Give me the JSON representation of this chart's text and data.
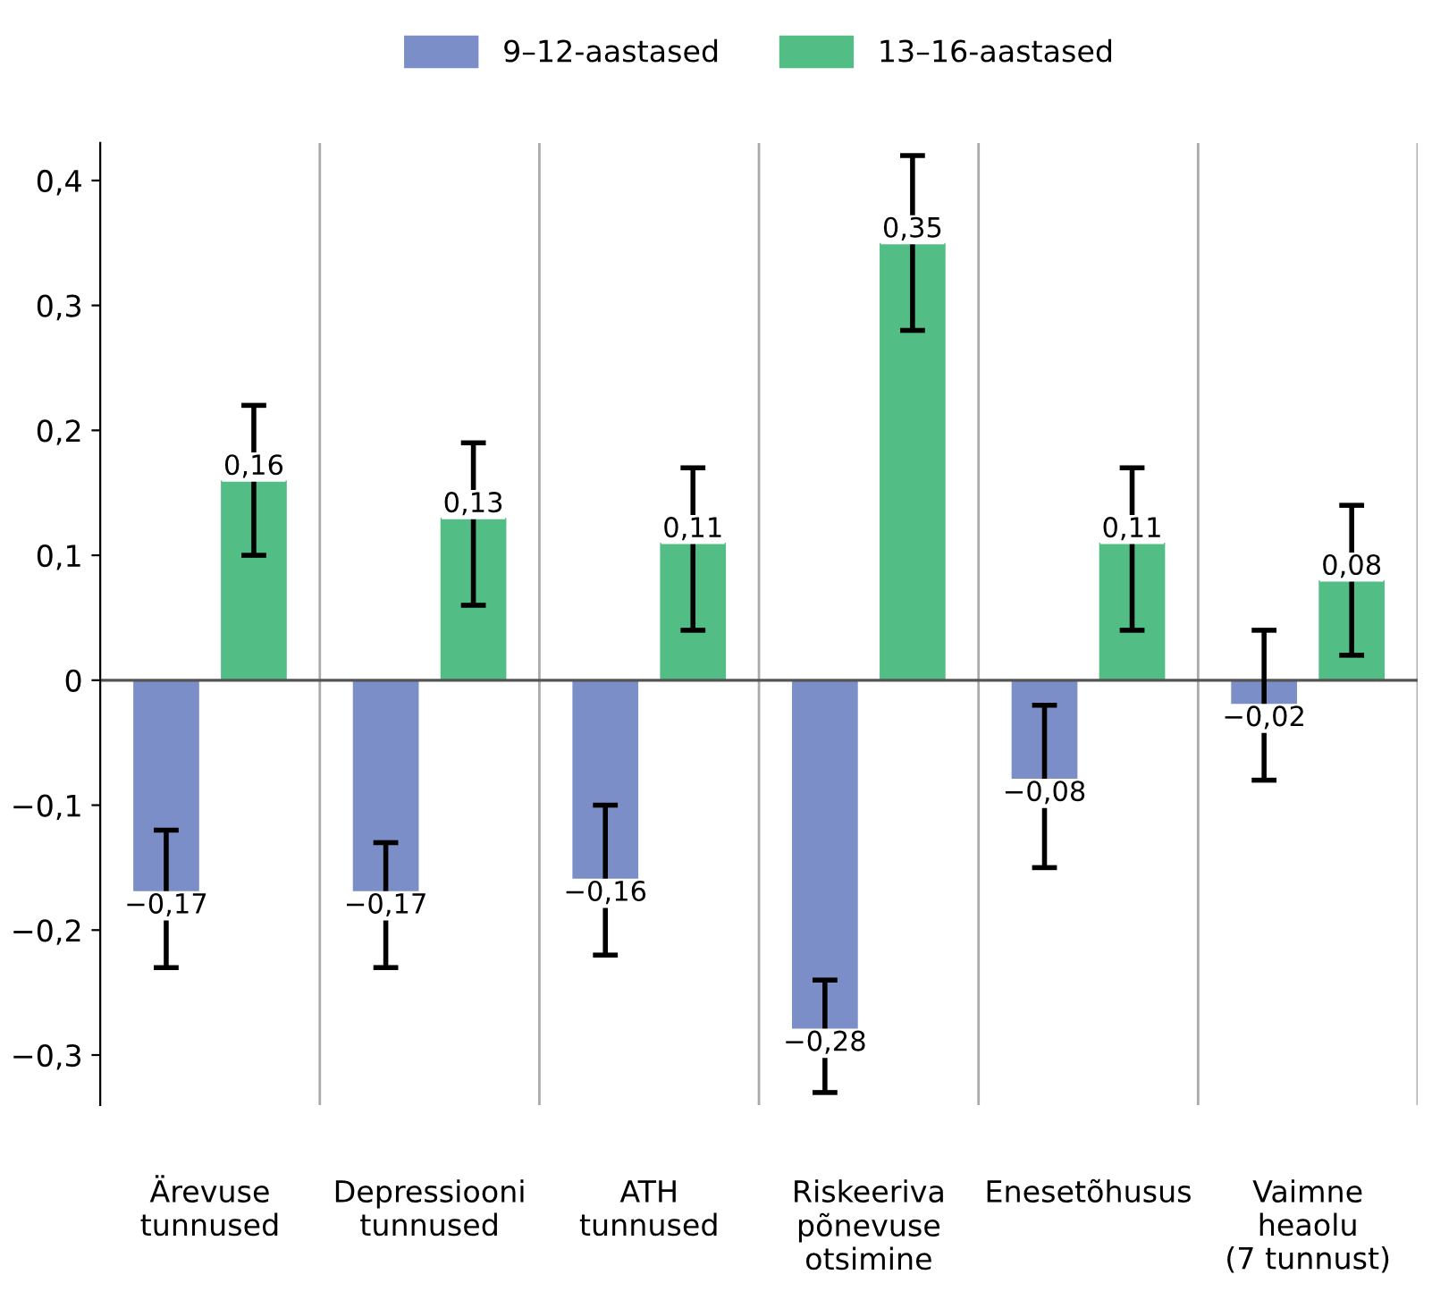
{
  "chart_data": {
    "type": "bar",
    "categories": [
      "Ärevuse\ntunnused",
      "Depressiooni\ntunnused",
      "ATH\ntunnused",
      "Riskeeriva\npõnevuse\notsimine",
      "Enesetõhusus",
      "Vaimne\nheaolu\n(7 tunnust)"
    ],
    "series": [
      {
        "name": "9–12-aastased",
        "color": "#7b8ec8",
        "values": [
          -0.17,
          -0.17,
          -0.16,
          -0.28,
          -0.08,
          -0.02
        ],
        "value_labels": [
          "−0,17",
          "−0,17",
          "−0,16",
          "−0,28",
          "−0,08",
          "−0,02"
        ],
        "errors": [
          [
            -0.23,
            -0.12
          ],
          [
            -0.23,
            -0.13
          ],
          [
            -0.22,
            -0.1
          ],
          [
            -0.33,
            -0.24
          ],
          [
            -0.15,
            -0.02
          ],
          [
            -0.08,
            0.04
          ]
        ]
      },
      {
        "name": "13–16-aastased",
        "color": "#52bd84",
        "values": [
          0.16,
          0.13,
          0.11,
          0.35,
          0.11,
          0.08
        ],
        "value_labels": [
          "0,16",
          "0,13",
          "0,11",
          "0,35",
          "0,11",
          "0,08"
        ],
        "errors": [
          [
            0.1,
            0.22
          ],
          [
            0.06,
            0.19
          ],
          [
            0.04,
            0.17
          ],
          [
            0.28,
            0.42
          ],
          [
            0.04,
            0.17
          ],
          [
            0.02,
            0.14
          ]
        ]
      }
    ],
    "ylim": [
      -0.34,
      0.43
    ],
    "yticks": [
      {
        "value": -0.3,
        "label": "−0,3"
      },
      {
        "value": -0.2,
        "label": "−0,2"
      },
      {
        "value": -0.1,
        "label": "−0,1"
      },
      0,
      {
        "value": 0.1,
        "label": "0,1"
      },
      {
        "value": 0.2,
        "label": "0,2"
      },
      {
        "value": 0.3,
        "label": "0,3"
      },
      {
        "value": 0.4,
        "label": "0,4"
      }
    ],
    "ref_lines": [
      {
        "axis": "y",
        "value": 0,
        "color": "#555555"
      }
    ],
    "grid": "x",
    "legend": "top"
  }
}
